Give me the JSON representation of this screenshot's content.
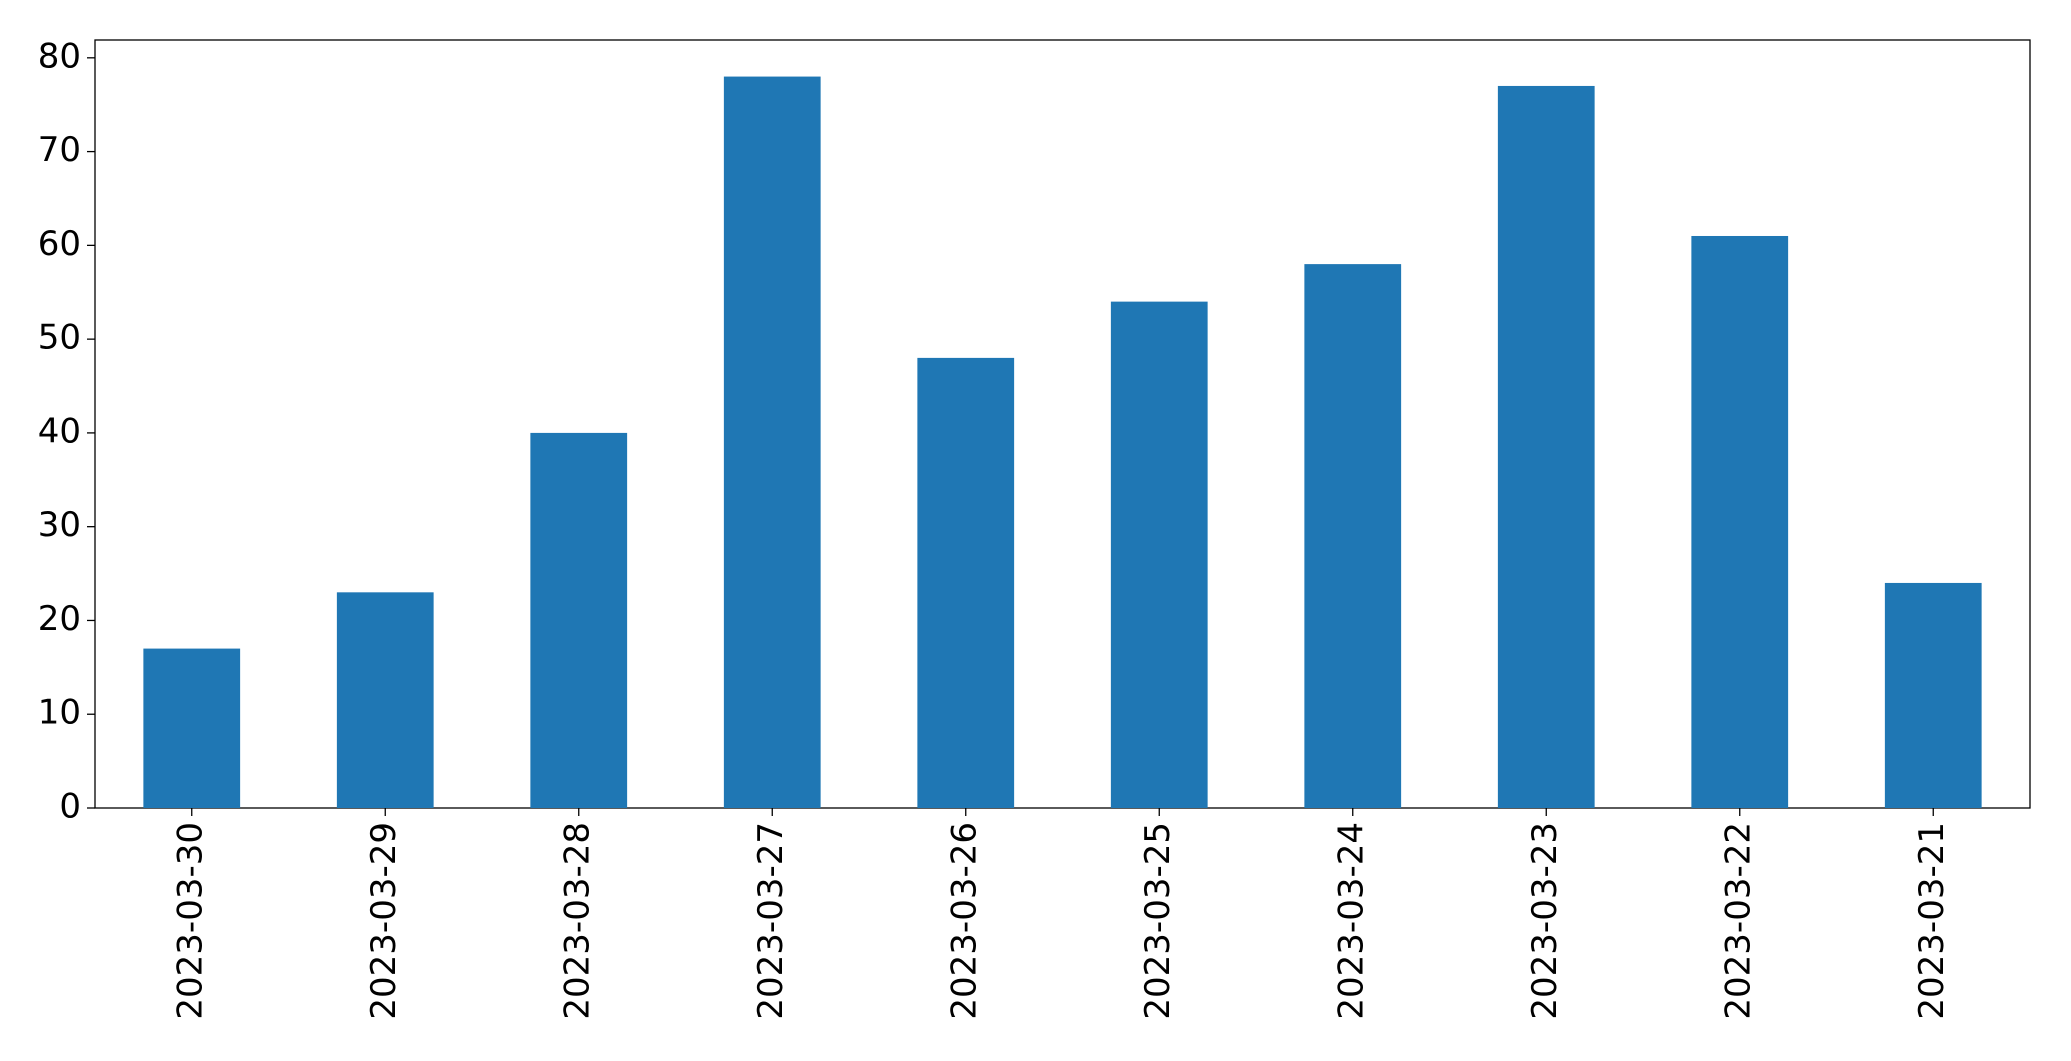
{
  "chart_data": {
    "type": "bar",
    "categories": [
      "2023-03-30",
      "2023-03-29",
      "2023-03-28",
      "2023-03-27",
      "2023-03-26",
      "2023-03-25",
      "2023-03-24",
      "2023-03-23",
      "2023-03-22",
      "2023-03-21"
    ],
    "values": [
      17,
      23,
      40,
      78,
      48,
      54,
      58,
      77,
      61,
      24
    ],
    "color": "#1f77b4",
    "ylim": [
      0,
      81.9
    ],
    "yticks": [
      0,
      10,
      20,
      30,
      40,
      50,
      60,
      70,
      80
    ],
    "grid": false
  }
}
